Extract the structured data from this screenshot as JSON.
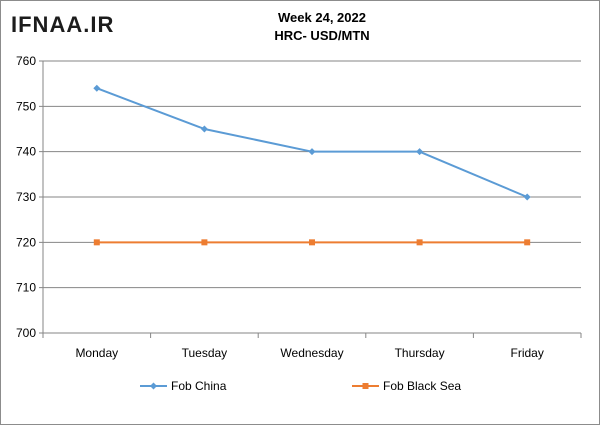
{
  "watermark": "IFNAA.IR",
  "chart_data": {
    "type": "line",
    "title": "Week 24, 2022",
    "subtitle": "HRC- USD/MTN",
    "categories": [
      "Monday",
      "Tuesday",
      "Wednesday",
      "Thursday",
      "Friday"
    ],
    "series": [
      {
        "name": "Fob China",
        "values": [
          754,
          745,
          740,
          740,
          730
        ],
        "color": "#5b9bd5",
        "marker": "diamond"
      },
      {
        "name": "Fob Black Sea",
        "values": [
          720,
          720,
          720,
          720,
          720
        ],
        "color": "#ed7d31",
        "marker": "square"
      }
    ],
    "ylim": [
      700,
      760
    ],
    "yticks": [
      700,
      710,
      720,
      730,
      740,
      750,
      760
    ],
    "grid": true,
    "legend": "bottom"
  }
}
